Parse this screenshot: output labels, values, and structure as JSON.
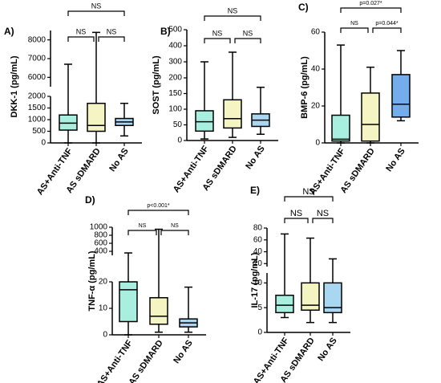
{
  "chart_data": [
    {
      "type": "box",
      "label": "A)",
      "ylabel": "DKK-1 (pg/mL)",
      "categories": [
        "AS+Anti-TNF",
        "AS sDMARD",
        "No AS"
      ],
      "boxes": [
        {
          "min": 0,
          "q1": 550,
          "median": 850,
          "q3": 1200,
          "max": 6700,
          "color": "#a8efdf"
        },
        {
          "min": 0,
          "q1": 500,
          "median": 750,
          "q3": 1700,
          "max": 8400,
          "color": "#f4f5c3"
        },
        {
          "min": 300,
          "q1": 750,
          "median": 900,
          "q3": 1050,
          "max": 1700,
          "color": "#a9d7f2"
        }
      ],
      "axis_segments": [
        {
          "ylim": [
            0,
            2000
          ],
          "yticks": [
            0,
            500,
            1000,
            1500,
            2000
          ]
        },
        {
          "ylim": [
            5500,
            8500
          ],
          "yticks": [
            6000,
            7000,
            8000
          ]
        }
      ],
      "annotations": [
        "NS",
        "NS",
        "NS"
      ]
    },
    {
      "type": "box",
      "label": "B)",
      "ylabel": "SOST (pg/mL)",
      "categories": [
        "AS+Anti-TNF",
        "AS sDMARD",
        "No AS"
      ],
      "boxes": [
        {
          "min": 5,
          "q1": 30,
          "median": 60,
          "q3": 95,
          "max": 300,
          "color": "#a8efdf"
        },
        {
          "min": 10,
          "q1": 40,
          "median": 70,
          "q3": 130,
          "max": 360,
          "color": "#f4f5c3"
        },
        {
          "min": 20,
          "q1": 45,
          "median": 65,
          "q3": 85,
          "max": 170,
          "color": "#a9d7f2"
        }
      ],
      "axis_segments": [
        {
          "ylim": [
            0,
            200
          ],
          "yticks": [
            0,
            50,
            100,
            150,
            200
          ]
        },
        {
          "ylim": [
            200,
            500
          ],
          "yticks": [
            300,
            400,
            500
          ]
        }
      ],
      "annotations": [
        "NS",
        "NS",
        "NS"
      ]
    },
    {
      "type": "box",
      "label": "C)",
      "ylabel": "BMP-6 (pg/mL)",
      "categories": [
        "AS+Anti-TNF",
        "AS sDMARD",
        "No AS"
      ],
      "boxes": [
        {
          "min": 0,
          "q1": 1,
          "median": 2,
          "q3": 15,
          "max": 53,
          "color": "#a8efdf"
        },
        {
          "min": 0,
          "q1": 1,
          "median": 10,
          "q3": 27,
          "max": 41,
          "color": "#f4f5c3"
        },
        {
          "min": 12,
          "q1": 14,
          "median": 21,
          "q3": 37,
          "max": 50,
          "color": "#74adec"
        }
      ],
      "axis_segments": [
        {
          "ylim": [
            0,
            60
          ],
          "yticks": [
            0,
            20,
            40,
            60
          ]
        }
      ],
      "annotations": [
        "p=0.027*",
        "NS",
        "p=0.044*"
      ]
    },
    {
      "type": "box",
      "label": "D)",
      "ylabel": "TNF-α (pg/mL)",
      "categories": [
        "AS+Anti-TNF",
        "AS sDMARD",
        "No AS"
      ],
      "boxes": [
        {
          "min": 0,
          "q1": 5,
          "median": 17,
          "q3": 20,
          "max": 360,
          "color": "#a8efdf"
        },
        {
          "min": 1,
          "q1": 4,
          "median": 7,
          "q3": 14,
          "max": 950,
          "color": "#f4f5c3"
        },
        {
          "min": 1,
          "q1": 3,
          "median": 4.5,
          "q3": 6,
          "max": 18,
          "color": "#a9d7f2"
        }
      ],
      "axis_segments": [
        {
          "ylim": [
            0,
            20
          ],
          "yticks": [
            0,
            10,
            20
          ]
        },
        {
          "ylim": [
            300,
            1000
          ],
          "yticks": [
            400,
            600,
            800,
            1000
          ]
        }
      ],
      "annotations": [
        "p<0.001*",
        "NS",
        "NS"
      ]
    },
    {
      "type": "box",
      "label": "E)",
      "ylabel": "IL-17 (pg/mL)",
      "categories": [
        "AS+Anti-TNF",
        "AS sDMARD",
        "No AS"
      ],
      "boxes": [
        {
          "min": 3,
          "q1": 4,
          "median": 5.5,
          "q3": 7.5,
          "max": 70,
          "color": "#a8efdf"
        },
        {
          "min": 2,
          "q1": 4.5,
          "median": 5.5,
          "q3": 10,
          "max": 63,
          "color": "#f4f5c3"
        },
        {
          "min": 2,
          "q1": 4,
          "median": 5,
          "q3": 10,
          "max": 28,
          "color": "#a9d7f2"
        }
      ],
      "axis_segments": [
        {
          "ylim": [
            0,
            12
          ],
          "yticks": [
            0,
            5,
            10
          ]
        },
        {
          "ylim": [
            15,
            80
          ],
          "yticks": [
            20,
            40,
            60,
            80
          ]
        }
      ],
      "annotations": [
        "NS",
        "NS",
        "NS"
      ]
    }
  ]
}
